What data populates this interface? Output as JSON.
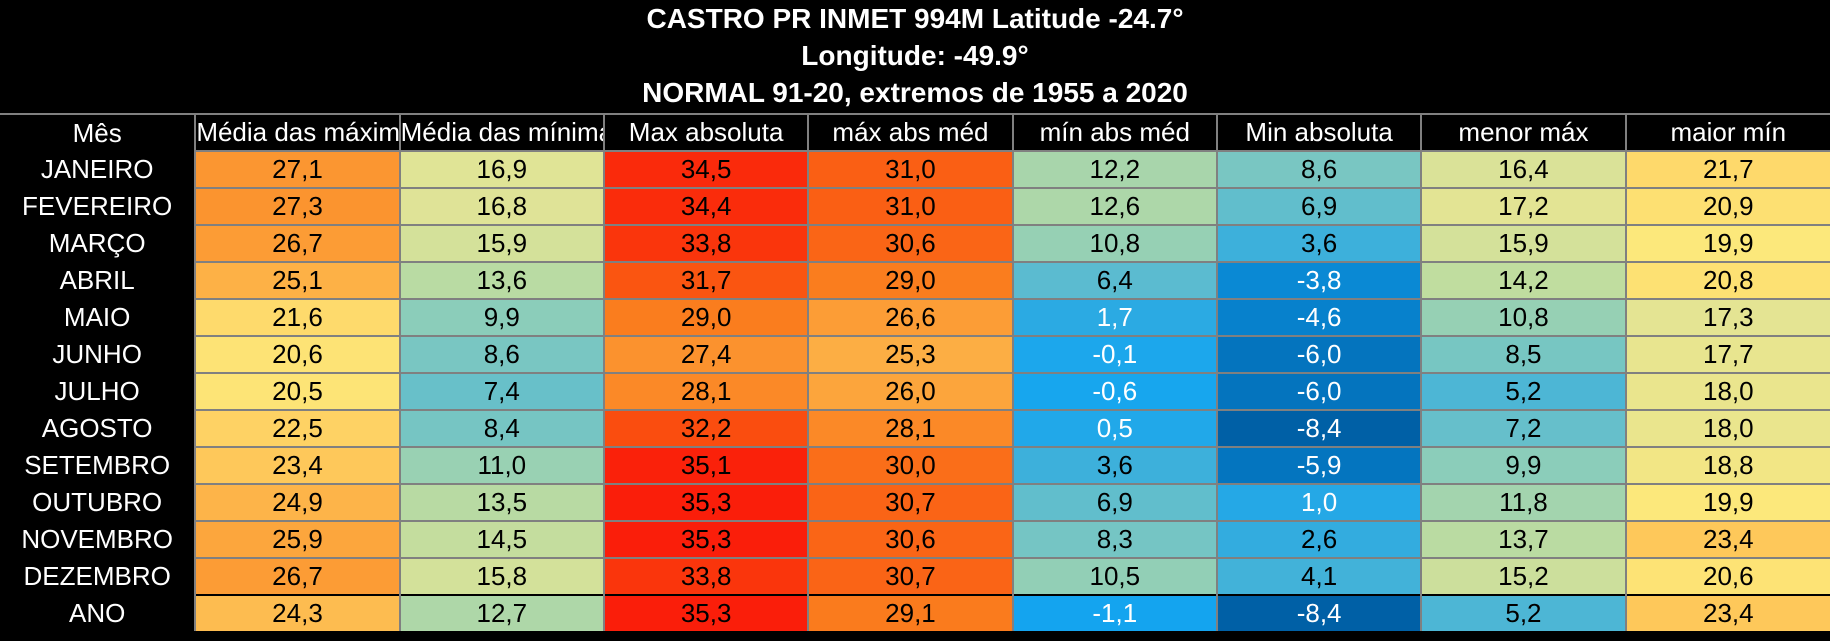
{
  "title": {
    "line1": "CASTRO PR INMET 994M Latitude -24.7°",
    "line2": "Longitude: -49.9°",
    "line3": "NORMAL 91-20, extremos de 1955 a 2020"
  },
  "colors": {
    "background": "#000000",
    "grid": "#808080",
    "hottest": "#ff2a0a",
    "warm": "#fb9a33",
    "mild": "#fde47c",
    "neutral": "#cfe0a0",
    "cool": "#68c0cf",
    "cold": "#1a9ee9",
    "coldest": "#0064aa"
  },
  "chart_data": {
    "type": "table",
    "row_header": "Mês",
    "columns": [
      "Média das máximas",
      "Média das mínimas",
      "Max absoluta",
      "máx abs méd",
      "mín abs méd",
      "Min absoluta",
      "menor máx",
      "maior mín"
    ],
    "rows": [
      {
        "label": "JANEIRO",
        "values": [
          "27,1",
          "16,9",
          "34,5",
          "31,0",
          "12,2",
          "8,6",
          "16,4",
          "21,7"
        ]
      },
      {
        "label": "FEVEREIRO",
        "values": [
          "27,3",
          "16,8",
          "34,4",
          "31,0",
          "12,6",
          "6,9",
          "17,2",
          "20,9"
        ]
      },
      {
        "label": "MARÇO",
        "values": [
          "26,7",
          "15,9",
          "33,8",
          "30,6",
          "10,8",
          "3,6",
          "15,9",
          "19,9"
        ]
      },
      {
        "label": "ABRIL",
        "values": [
          "25,1",
          "13,6",
          "31,7",
          "29,0",
          "6,4",
          "-3,8",
          "14,2",
          "20,8"
        ]
      },
      {
        "label": "MAIO",
        "values": [
          "21,6",
          "9,9",
          "29,0",
          "26,6",
          "1,7",
          "-4,6",
          "10,8",
          "17,3"
        ]
      },
      {
        "label": "JUNHO",
        "values": [
          "20,6",
          "8,6",
          "27,4",
          "25,3",
          "-0,1",
          "-6,0",
          "8,5",
          "17,7"
        ]
      },
      {
        "label": "JULHO",
        "values": [
          "20,5",
          "7,4",
          "28,1",
          "26,0",
          "-0,6",
          "-6,0",
          "5,2",
          "18,0"
        ]
      },
      {
        "label": "AGOSTO",
        "values": [
          "22,5",
          "8,4",
          "32,2",
          "28,1",
          "0,5",
          "-8,4",
          "7,2",
          "18,0"
        ]
      },
      {
        "label": "SETEMBRO",
        "values": [
          "23,4",
          "11,0",
          "35,1",
          "30,0",
          "3,6",
          "-5,9",
          "9,9",
          "18,8"
        ]
      },
      {
        "label": "OUTUBRO",
        "values": [
          "24,9",
          "13,5",
          "35,3",
          "30,7",
          "6,9",
          "1,0",
          "11,8",
          "19,9"
        ]
      },
      {
        "label": "NOVEMBRO",
        "values": [
          "25,9",
          "14,5",
          "35,3",
          "30,6",
          "8,3",
          "2,6",
          "13,7",
          "23,4"
        ]
      },
      {
        "label": "DEZEMBRO",
        "values": [
          "26,7",
          "15,8",
          "33,8",
          "30,7",
          "10,5",
          "4,1",
          "15,2",
          "20,6"
        ]
      },
      {
        "label": "ANO",
        "values": [
          "24,3",
          "12,7",
          "35,3",
          "29,1",
          "-1,1",
          "-8,4",
          "5,2",
          "23,4"
        ]
      }
    ]
  }
}
